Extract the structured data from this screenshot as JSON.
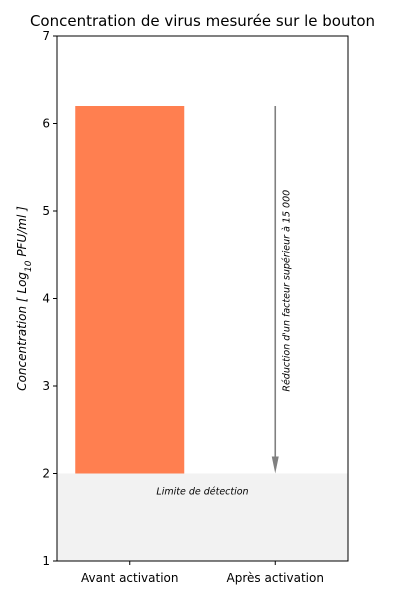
{
  "chart_data": {
    "type": "bar",
    "title": "Concentration de virus mesurée sur le bouton",
    "ylabel": "Concentration [ Log₁₀ PFU/ml ]",
    "ylabel_parts": {
      "before": "Concentration [ Log",
      "subscript": "10",
      "after": " PFU/ml ]"
    },
    "xlabel": "",
    "categories": [
      "Avant activation",
      "Après activation"
    ],
    "bar": {
      "category": "Avant activation",
      "bottom": 2,
      "top": 6.2,
      "color": "#ff7f50"
    },
    "ylim": [
      1,
      7
    ],
    "yticks": [
      1,
      2,
      3,
      4,
      5,
      6,
      7
    ],
    "detection_limit": {
      "value": 2,
      "label": "Limite de détection",
      "color": "#f2f2f2"
    },
    "reduction_arrow": {
      "category": "Après activation",
      "from": 6.2,
      "to": 2,
      "label": "Réduction d'un facteur supérieur à 15 000",
      "color": "#808080"
    },
    "grid": false,
    "legend": "none"
  }
}
